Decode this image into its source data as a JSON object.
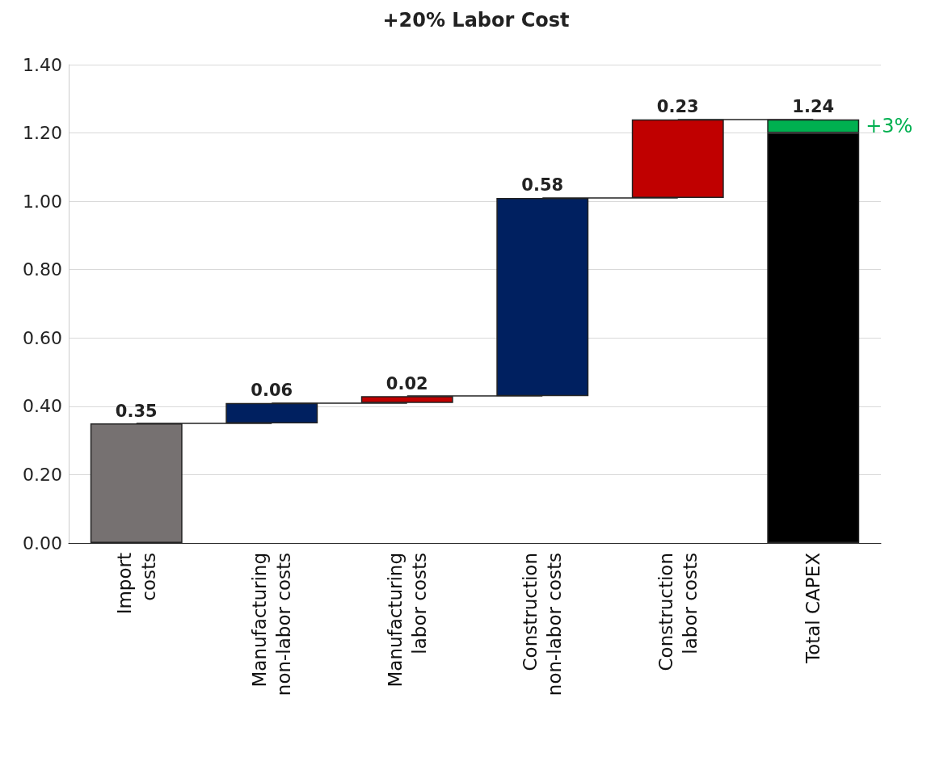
{
  "chart_data": {
    "type": "bar",
    "title": "+20% Labor Cost",
    "categories": [
      "Import\ncosts",
      "Manufacturing\nnon-labor costs",
      "Manufacturing\nlabor costs",
      "Construction\nnon-labor costs",
      "Construction\nlabor costs",
      "Total CAPEX"
    ],
    "series": [
      {
        "colors": [
          "#767171",
          "#002060",
          "#c00000",
          "#002060",
          "#c00000",
          "#000000"
        ],
        "values": [
          0.35,
          0.06,
          0.02,
          0.58,
          0.23,
          1.2
        ],
        "base": [
          0,
          0.35,
          0.41,
          0.43,
          1.01,
          0
        ],
        "value_labels": [
          "0.35",
          "0.06",
          "0.02",
          "0.58",
          "0.23",
          null
        ]
      },
      {
        "color": "#00b050",
        "values": [
          null,
          null,
          null,
          null,
          null,
          0.04
        ],
        "base": [
          null,
          null,
          null,
          null,
          null,
          1.2
        ],
        "value_labels": [
          null,
          null,
          null,
          null,
          null,
          "1.24"
        ]
      }
    ],
    "annotations": [
      "+3%"
    ],
    "ylim": [
      0,
      1.4
    ],
    "yticks": [
      {
        "value": 0,
        "label": "0.00"
      },
      {
        "value": 0.2,
        "label": "0.20"
      },
      {
        "value": 0.4,
        "label": "0.40"
      },
      {
        "value": 0.6,
        "label": "0.60"
      },
      {
        "value": 0.8,
        "label": "0.80"
      },
      {
        "value": 1,
        "label": "1.00"
      },
      {
        "value": 1.2,
        "label": "1.20"
      },
      {
        "value": 1.4,
        "label": "1.40"
      }
    ],
    "grid": "y"
  }
}
